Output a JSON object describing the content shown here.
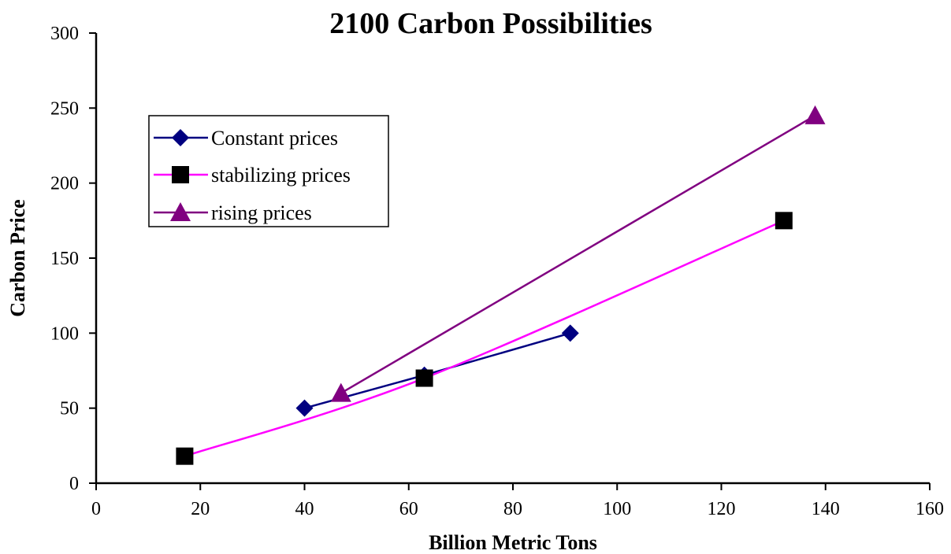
{
  "chart_data": {
    "type": "scatter",
    "title": "2100 Carbon Possibilities",
    "xlabel": "Billion Metric Tons",
    "ylabel": "Carbon Price",
    "xlim": [
      0,
      160
    ],
    "ylim": [
      0,
      300
    ],
    "x_ticks": [
      "0",
      "20",
      "40",
      "60",
      "80",
      "100",
      "120",
      "140",
      "160"
    ],
    "y_ticks": [
      "0",
      "50",
      "100",
      "150",
      "200",
      "250",
      "300"
    ],
    "grid": false,
    "legend_position": "upper-left",
    "series": [
      {
        "name": "Constant prices",
        "color": "#000080",
        "marker": "diamond",
        "line": "straight",
        "points": [
          [
            40,
            50
          ],
          [
            63,
            72
          ],
          [
            91,
            100
          ]
        ]
      },
      {
        "name": "stabilizing prices",
        "color": "#ff00ff",
        "marker": "square",
        "marker_color": "#000000",
        "line": "smooth",
        "points": [
          [
            17,
            18
          ],
          [
            63,
            70
          ],
          [
            132,
            175
          ]
        ]
      },
      {
        "name": "rising prices",
        "color": "#800080",
        "marker": "triangle",
        "line": "straight",
        "points": [
          [
            47,
            60
          ],
          [
            138,
            245
          ]
        ]
      }
    ]
  }
}
